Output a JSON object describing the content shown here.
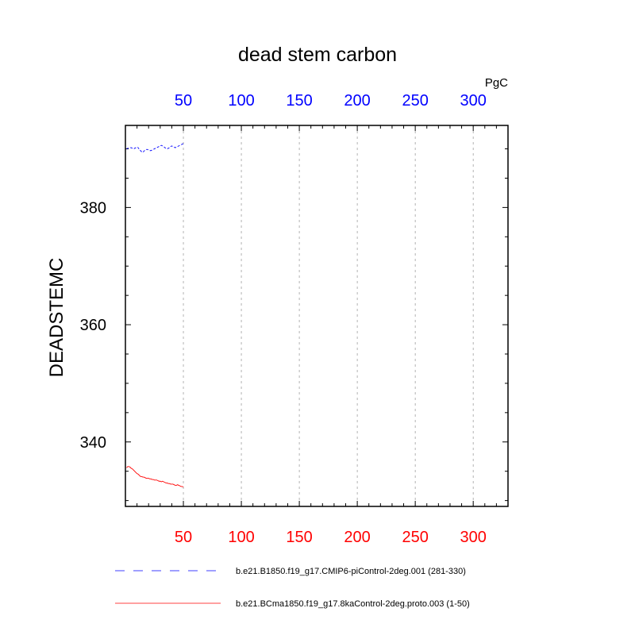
{
  "chart_data": {
    "type": "line",
    "title": "dead stem carbon",
    "units": "PgC",
    "ylabel": "DEADSTEMC",
    "xlabel": "",
    "xlim": [
      0,
      330
    ],
    "ylim": [
      329,
      394
    ],
    "x_ticks": [
      50,
      100,
      150,
      200,
      250,
      300
    ],
    "y_ticks": [
      340,
      360,
      380
    ],
    "top_axis_color": "#0000ff",
    "bottom_axis_color": "#ff0000",
    "grid": "vertical-dashed",
    "legend_position": "bottom",
    "series": [
      {
        "name": "b.e21.B1850.f19_g17.CMIP6-piControl-2deg.001 (281-330)",
        "color": "#0000ff",
        "dash": "dashed",
        "x": [
          1,
          2,
          3,
          4,
          5,
          6,
          7,
          8,
          9,
          10,
          11,
          12,
          13,
          14,
          15,
          16,
          17,
          18,
          19,
          20,
          21,
          22,
          23,
          24,
          25,
          26,
          27,
          28,
          29,
          30,
          31,
          32,
          33,
          34,
          35,
          36,
          37,
          38,
          39,
          40,
          41,
          42,
          43,
          44,
          45,
          46,
          47,
          48,
          49,
          50
        ],
        "y": [
          390.0,
          390.1,
          390.1,
          390.2,
          390.2,
          390.1,
          390.0,
          390.1,
          390.2,
          390.3,
          390.2,
          389.9,
          389.7,
          389.5,
          389.4,
          389.6,
          389.8,
          389.9,
          389.9,
          389.8,
          389.7,
          389.7,
          389.8,
          389.9,
          390.0,
          390.1,
          390.2,
          390.3,
          390.4,
          390.5,
          390.6,
          390.5,
          390.4,
          390.2,
          390.1,
          390.0,
          390.1,
          390.2,
          390.4,
          390.5,
          390.4,
          390.3,
          390.2,
          390.3,
          390.4,
          390.5,
          390.6,
          390.7,
          390.8,
          390.9
        ]
      },
      {
        "name": "b.e21.BCma1850.f19_g17.8kaControl-2deg.proto.003 (1-50)",
        "color": "#ff0000",
        "dash": "solid",
        "x": [
          1,
          2,
          3,
          4,
          5,
          6,
          7,
          8,
          9,
          10,
          11,
          12,
          13,
          14,
          15,
          16,
          17,
          18,
          19,
          20,
          21,
          22,
          23,
          24,
          25,
          26,
          27,
          28,
          29,
          30,
          31,
          32,
          33,
          34,
          35,
          36,
          37,
          38,
          39,
          40,
          41,
          42,
          43,
          44,
          45,
          46,
          47,
          48,
          49,
          50
        ],
        "y": [
          335.6,
          335.8,
          335.8,
          335.7,
          335.5,
          335.4,
          335.2,
          335.0,
          334.8,
          334.6,
          334.5,
          334.3,
          334.1,
          334.1,
          334.0,
          334.0,
          333.9,
          333.8,
          333.8,
          333.8,
          333.7,
          333.7,
          333.6,
          333.6,
          333.5,
          333.5,
          333.5,
          333.4,
          333.3,
          333.3,
          333.2,
          333.3,
          333.2,
          333.1,
          333.0,
          333.0,
          332.9,
          332.9,
          332.8,
          332.8,
          332.8,
          332.7,
          332.6,
          332.6,
          332.7,
          332.6,
          332.5,
          332.4,
          332.4,
          332.3
        ]
      }
    ]
  }
}
